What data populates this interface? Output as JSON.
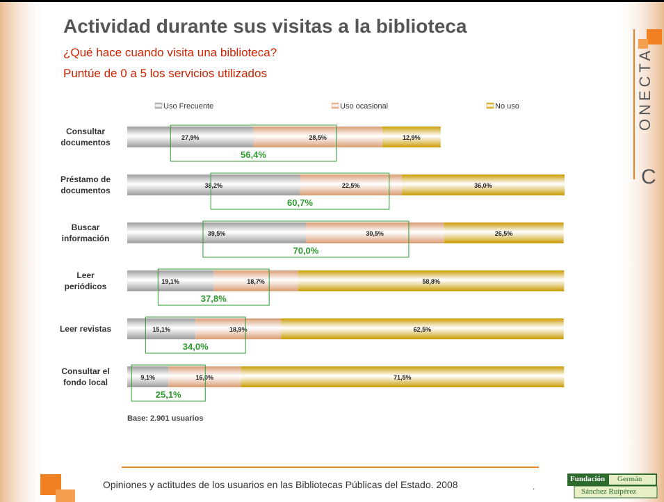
{
  "header": {
    "title": "Actividad durante sus visitas a la biblioteca",
    "subtitle_1": "¿Qué hace cuando visita una biblioteca?",
    "subtitle_2": "Puntúe de 0 a 5 los servicios utilizados"
  },
  "chart_data": {
    "type": "bar",
    "orientation": "horizontal",
    "stacked": true,
    "categories": [
      "Consultar\ndocumentos",
      "Préstamo de\ndocumentos",
      "Buscar\ninformación",
      "Leer\nperiódicos",
      "Leer revistas",
      "Consultar el\nfondo local"
    ],
    "series": [
      {
        "name": "Uso Frecuente",
        "color": "#9a9a9a",
        "values": [
          27.9,
          38.2,
          39.5,
          19.1,
          15.1,
          9.1
        ],
        "value_labels": [
          "27,9%",
          "38,2%",
          "39,5%",
          "19,1%",
          "15,1%",
          "9,1%"
        ]
      },
      {
        "name": "Uso ocasional",
        "color": "#d99a72",
        "values": [
          28.5,
          22.5,
          30.5,
          18.7,
          18.9,
          16.0
        ],
        "value_labels": [
          "28,5%",
          "22,5%",
          "30,5%",
          "18,7%",
          "18,9%",
          "16,0%"
        ]
      },
      {
        "name": "No uso",
        "color": "#c99a00",
        "values": [
          12.9,
          36.0,
          26.5,
          58.8,
          62.5,
          71.5
        ],
        "value_labels": [
          "12,9%",
          "36,0%",
          "26,5%",
          "58,8%",
          "62,5%",
          "71,5%"
        ]
      }
    ],
    "highlight": {
      "color": "#2e9a2e",
      "values": [
        56.4,
        60.7,
        70.0,
        37.8,
        34.0,
        25.1
      ],
      "value_labels": [
        "56,4%",
        "60,7%",
        "70,0%",
        "37,8%",
        "34,0%",
        "25,1%"
      ]
    },
    "annotation": "Base: 2.901 usuarios"
  },
  "footer": {
    "text": "Opiniones y actitudes de los usuarios en las Bibliotecas Públicas del Estado. 2008",
    "dot": ".",
    "logo_1": "Fundación",
    "logo_2": "Germán",
    "logo_3": "Sánchez Ruipérez",
    "brand": "ONECTA",
    "brand_initial": "C"
  }
}
